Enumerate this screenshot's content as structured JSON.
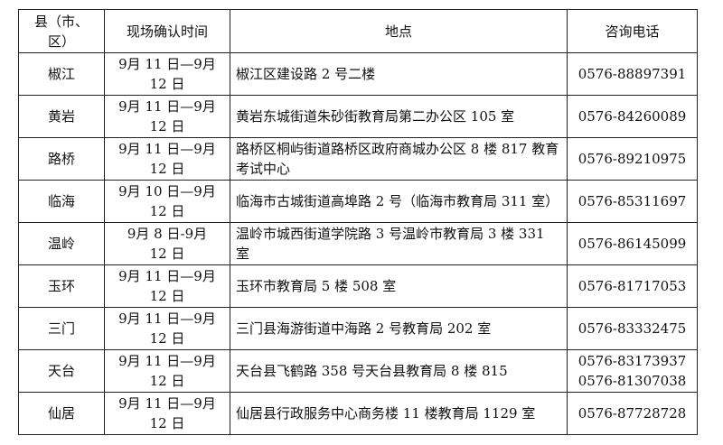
{
  "headers": [
    "县（市、区）",
    "现场确认时间",
    "地点",
    "咨询电话"
  ],
  "rows": [
    {
      "county": "椒江",
      "time": "9月 11 日—9月 12 日",
      "place": "椒江区建设路 2 号二楼",
      "phones": [
        "0576-88897391"
      ]
    },
    {
      "county": "黄岩",
      "time": "9月 11 日—9月 12 日",
      "place": "黄岩东城街道朱砂街教育局第二办公区 105 室",
      "phones": [
        "0576-84260089"
      ]
    },
    {
      "county": "路桥",
      "time": "9月 11 日—9月 12 日",
      "place": "路桥区桐屿街道路桥区政府商城办公区 8 楼 817 教育考试中心",
      "phones": [
        "0576-89210975"
      ]
    },
    {
      "county": "临海",
      "time": "9月 10 日—9月 12 日",
      "place": "临海市古城街道高埠路 2 号（临海市教育局 311 室）",
      "phones": [
        "0576-85311697"
      ]
    },
    {
      "county": "温岭",
      "time": "9月 8 日-9月 12 日",
      "place": "温岭市城西街道学院路 3 号温岭市教育局 3 楼 331 室",
      "phones": [
        "0576-86145099"
      ]
    },
    {
      "county": "玉环",
      "time": "9月 11 日—9月 12 日",
      "place": "玉环市教育局 5 楼 508 室",
      "phones": [
        "0576-81717053"
      ]
    },
    {
      "county": "三门",
      "time": "9月 11 日—9月 12 日",
      "place": "三门县海游街道中海路 2 号教育局 202 室",
      "phones": [
        "0576-83332475"
      ]
    },
    {
      "county": "天台",
      "time": "9月 11 日—9月 12 日",
      "place": "天台县飞鹤路 358 号天台县教育局 8 楼 815",
      "phones": [
        "0576-83173937",
        "0576-81307038"
      ]
    },
    {
      "county": "仙居",
      "time": "9月 11 日—9月 12 日",
      "place": "仙居县行政服务中心商务楼 11 楼教育局 1129 室",
      "phones": [
        "0576-87728728"
      ]
    }
  ]
}
